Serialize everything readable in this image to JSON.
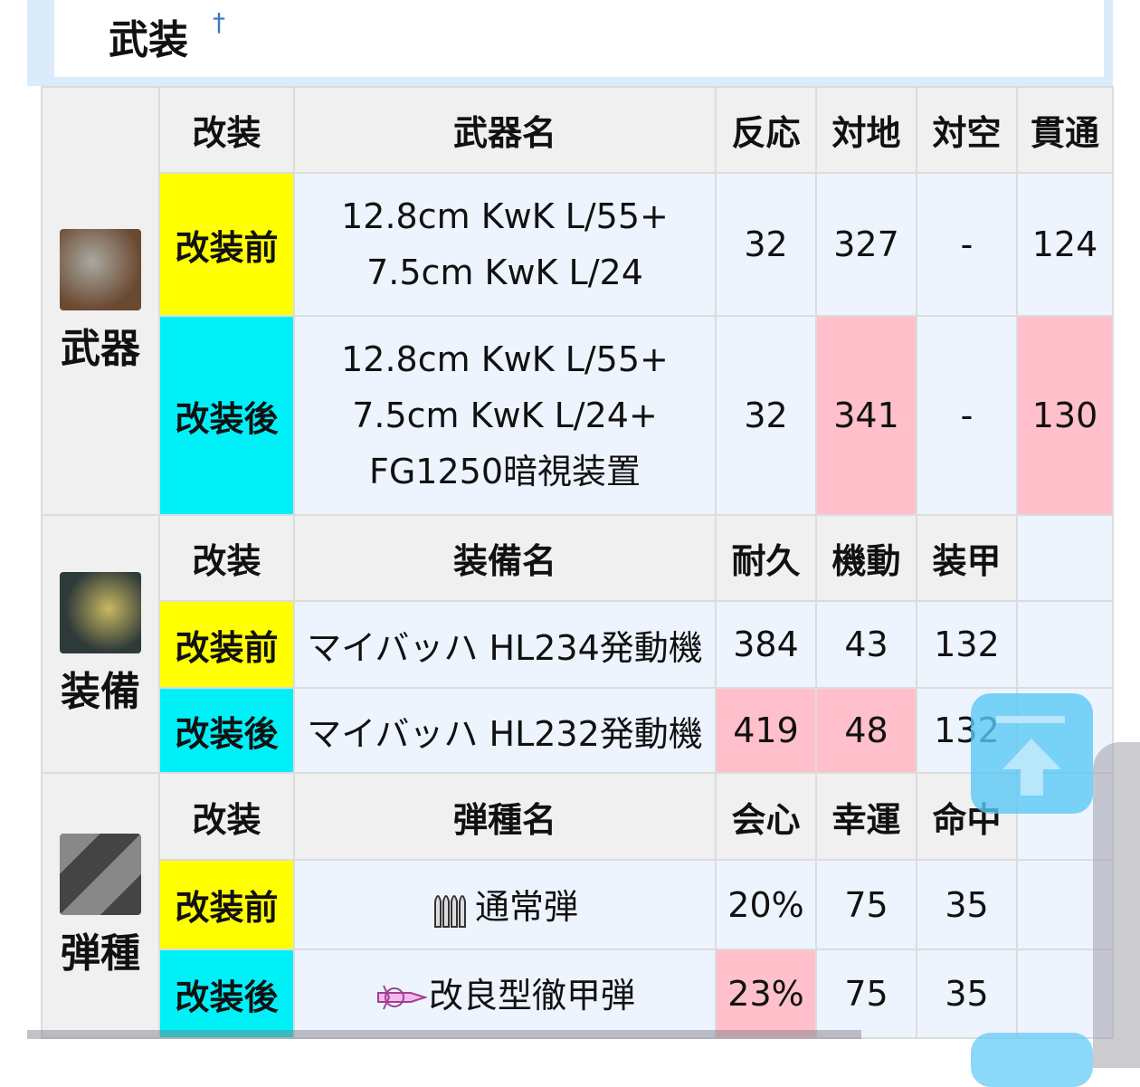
{
  "section": {
    "title": "武装",
    "anchor": "†"
  },
  "weapon": {
    "side_label": "武器",
    "icon": "weapon-icon",
    "headers": [
      "改装",
      "武器名",
      "反応",
      "対地",
      "対空",
      "貫通"
    ],
    "rows": [
      {
        "stage": "改装前",
        "name_lines": [
          "12.8cm KwK L/55+",
          "7.5cm KwK L/24"
        ],
        "values": [
          "32",
          "327",
          "-",
          "124"
        ]
      },
      {
        "stage": "改装後",
        "name_lines": [
          "12.8cm KwK L/55+",
          "7.5cm KwK L/24+",
          "FG1250暗視装置"
        ],
        "values": [
          "32",
          "341",
          "-",
          "130"
        ]
      }
    ]
  },
  "equipment": {
    "side_label": "装備",
    "icon": "engine-icon",
    "headers": [
      "改装",
      "装備名",
      "耐久",
      "機動",
      "装甲"
    ],
    "rows": [
      {
        "stage": "改装前",
        "name": "マイバッハ HL234発動機",
        "values": [
          "384",
          "43",
          "132"
        ]
      },
      {
        "stage": "改装後",
        "name": "マイバッハ HL232発動機",
        "values": [
          "419",
          "48",
          "132"
        ]
      }
    ]
  },
  "ammo": {
    "side_label": "弾種",
    "icon": "ammo-icon",
    "headers": [
      "改装",
      "弾種名",
      "会心",
      "幸運",
      "命中"
    ],
    "rows": [
      {
        "stage": "改装前",
        "name": "通常弾",
        "icon": "bullets-icon",
        "values": [
          "20%",
          "75",
          "35"
        ]
      },
      {
        "stage": "改装後",
        "name": "改良型徹甲弾",
        "icon": "armor-piercing-icon",
        "values": [
          "23%",
          "75",
          "35"
        ]
      }
    ]
  },
  "colors": {
    "pre": "#ffff00",
    "post": "#00f0f8",
    "improved": "#ffc0cb",
    "cell": "#eef4fe",
    "header": "#f0f0f0"
  }
}
